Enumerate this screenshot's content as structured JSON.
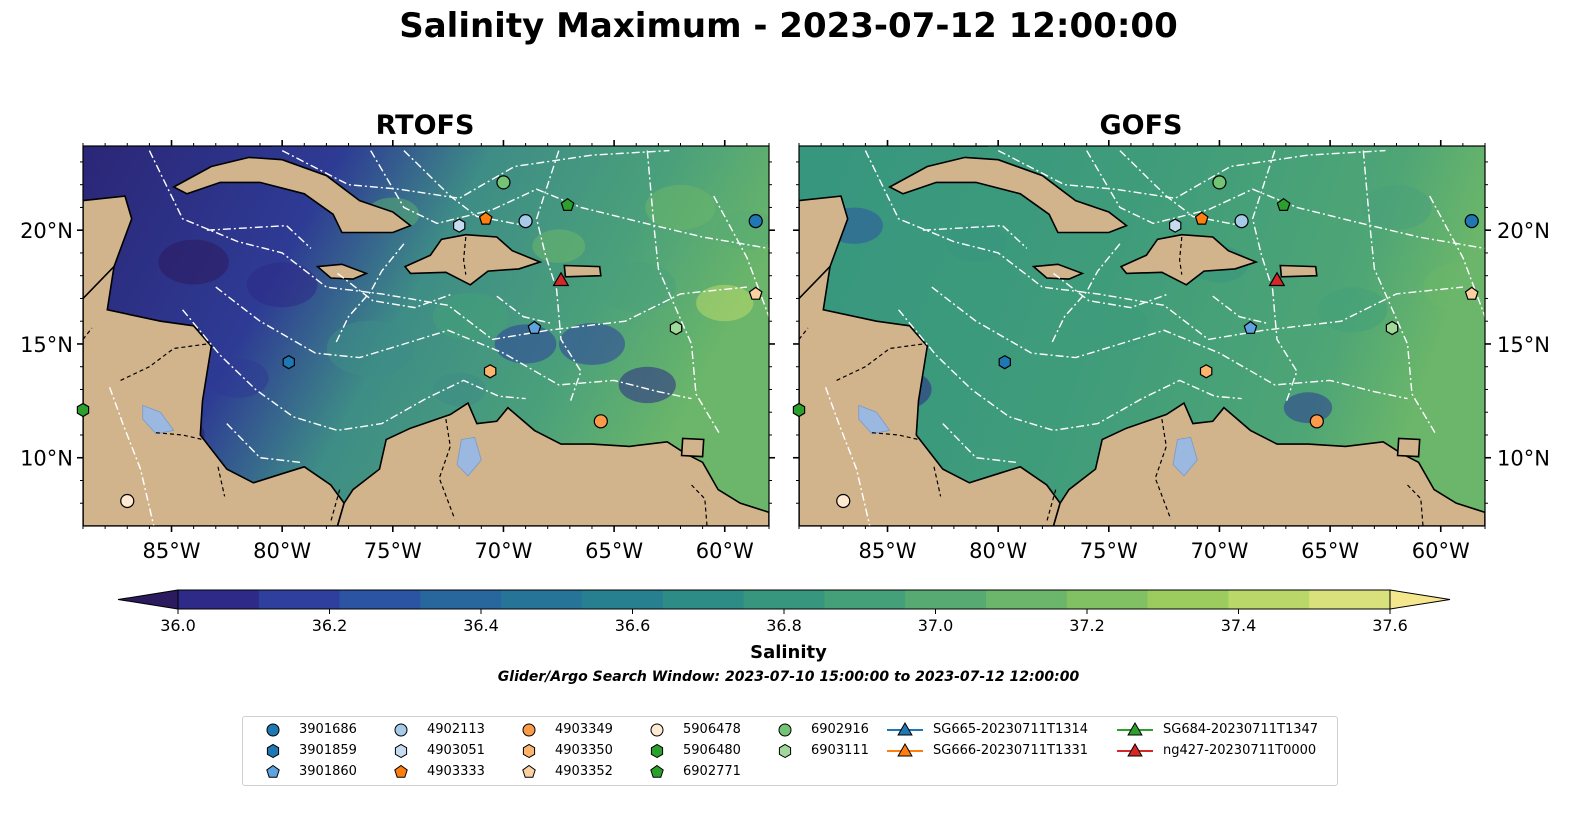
{
  "title": "Salinity Maximum - 2023-07-12 12:00:00",
  "panels": [
    {
      "title": "RTOFS"
    },
    {
      "title": "GOFS"
    }
  ],
  "axes": {
    "lon_range": [
      -89,
      -58
    ],
    "lat_range": [
      7,
      23.7
    ],
    "lon_ticks": [
      "85°W",
      "80°W",
      "75°W",
      "70°W",
      "65°W",
      "60°W"
    ],
    "lat_ticks": [
      "20°N",
      "15°N",
      "10°N"
    ]
  },
  "colorbar": {
    "label": "Salinity",
    "ticks": [
      "36.0",
      "36.2",
      "36.4",
      "36.6",
      "36.8",
      "37.0",
      "37.2",
      "37.4",
      "37.6"
    ],
    "range": [
      36.0,
      37.6
    ],
    "extend": "both",
    "colors": [
      "#2b1a5e",
      "#2e2a87",
      "#2f3f9d",
      "#2b55a3",
      "#28679e",
      "#267498",
      "#27808f",
      "#2d8c86",
      "#36967e",
      "#44a078",
      "#57ab72",
      "#6bb66a",
      "#82c163",
      "#9ccc5e",
      "#bad86a",
      "#d8e17c",
      "#f4e78d"
    ],
    "land_color": "#d2b48c",
    "lake_color": "#9ab8e0"
  },
  "search_window": "Glider/Argo Search Window: 2023-07-10 15:00:00 to 2023-07-12 12:00:00",
  "legend": [
    {
      "label": "3901686",
      "marker": "circle",
      "color": "#1f77b4"
    },
    {
      "label": "3901859",
      "marker": "hexagon",
      "color": "#1f77b4"
    },
    {
      "label": "3901860",
      "marker": "pentagon",
      "color": "#5ca3e0"
    },
    {
      "label": "4902113",
      "marker": "circle",
      "color": "#a6cbe8"
    },
    {
      "label": "4903051",
      "marker": "hexagon",
      "color": "#c6dbef"
    },
    {
      "label": "4903333",
      "marker": "pentagon",
      "color": "#ff7f0e"
    },
    {
      "label": "4903349",
      "marker": "circle",
      "color": "#fd9a4a"
    },
    {
      "label": "4903350",
      "marker": "hexagon",
      "color": "#fdb56e"
    },
    {
      "label": "4903352",
      "marker": "pentagon",
      "color": "#fdd0a2"
    },
    {
      "label": "5906478",
      "marker": "circle",
      "color": "#feead2"
    },
    {
      "label": "5906480",
      "marker": "hexagon",
      "color": "#2ca02c"
    },
    {
      "label": "6902771",
      "marker": "pentagon",
      "color": "#2ca02c"
    },
    {
      "label": "6902916",
      "marker": "circle",
      "color": "#74c476"
    },
    {
      "label": "6903111",
      "marker": "hexagon",
      "color": "#a1d99b"
    },
    {
      "label": "SG665-20230711T1314",
      "marker": "triangle-line",
      "color": "#1f77b4"
    },
    {
      "label": "SG666-20230711T1331",
      "marker": "triangle-line",
      "color": "#ff7f0e"
    },
    {
      "label": "SG684-20230711T1347",
      "marker": "triangle-line",
      "color": "#2ca02c"
    },
    {
      "label": "ng427-20230711T0000",
      "marker": "triangle-line",
      "color": "#d62728"
    }
  ],
  "markers": [
    {
      "id": "3901686",
      "lon": -58.6,
      "lat": 20.4,
      "marker": "circle",
      "color": "#1f77b4"
    },
    {
      "id": "3901859",
      "lon": -79.7,
      "lat": 14.2,
      "marker": "hexagon",
      "color": "#1f77b4"
    },
    {
      "id": "3901860",
      "lon": -68.6,
      "lat": 15.7,
      "marker": "pentagon",
      "color": "#5ca3e0"
    },
    {
      "id": "4902113",
      "lon": -69.0,
      "lat": 20.4,
      "marker": "circle",
      "color": "#a6cbe8"
    },
    {
      "id": "4903051",
      "lon": -72.0,
      "lat": 20.2,
      "marker": "hexagon",
      "color": "#c6dbef"
    },
    {
      "id": "4903333",
      "lon": -70.8,
      "lat": 20.5,
      "marker": "pentagon",
      "color": "#ff7f0e"
    },
    {
      "id": "4903349",
      "lon": -65.6,
      "lat": 11.6,
      "marker": "circle",
      "color": "#fd9a4a"
    },
    {
      "id": "4903350",
      "lon": -70.6,
      "lat": 13.8,
      "marker": "hexagon",
      "color": "#fdb56e"
    },
    {
      "id": "4903352",
      "lon": -58.6,
      "lat": 17.2,
      "marker": "pentagon",
      "color": "#fdd0a2"
    },
    {
      "id": "5906478",
      "lon": -87.0,
      "lat": 8.1,
      "marker": "circle",
      "color": "#feead2"
    },
    {
      "id": "5906480",
      "lon": -89.0,
      "lat": 12.1,
      "marker": "hexagon",
      "color": "#2ca02c"
    },
    {
      "id": "6902771",
      "lon": -67.1,
      "lat": 21.1,
      "marker": "pentagon",
      "color": "#2ca02c"
    },
    {
      "id": "6902916",
      "lon": -70.0,
      "lat": 22.1,
      "marker": "circle",
      "color": "#74c476"
    },
    {
      "id": "6903111",
      "lon": -62.2,
      "lat": 15.7,
      "marker": "hexagon",
      "color": "#a1d99b"
    },
    {
      "id": "ng427-20230711T0000",
      "lon": -67.4,
      "lat": 17.8,
      "marker": "triangle",
      "color": "#d62728"
    }
  ]
}
